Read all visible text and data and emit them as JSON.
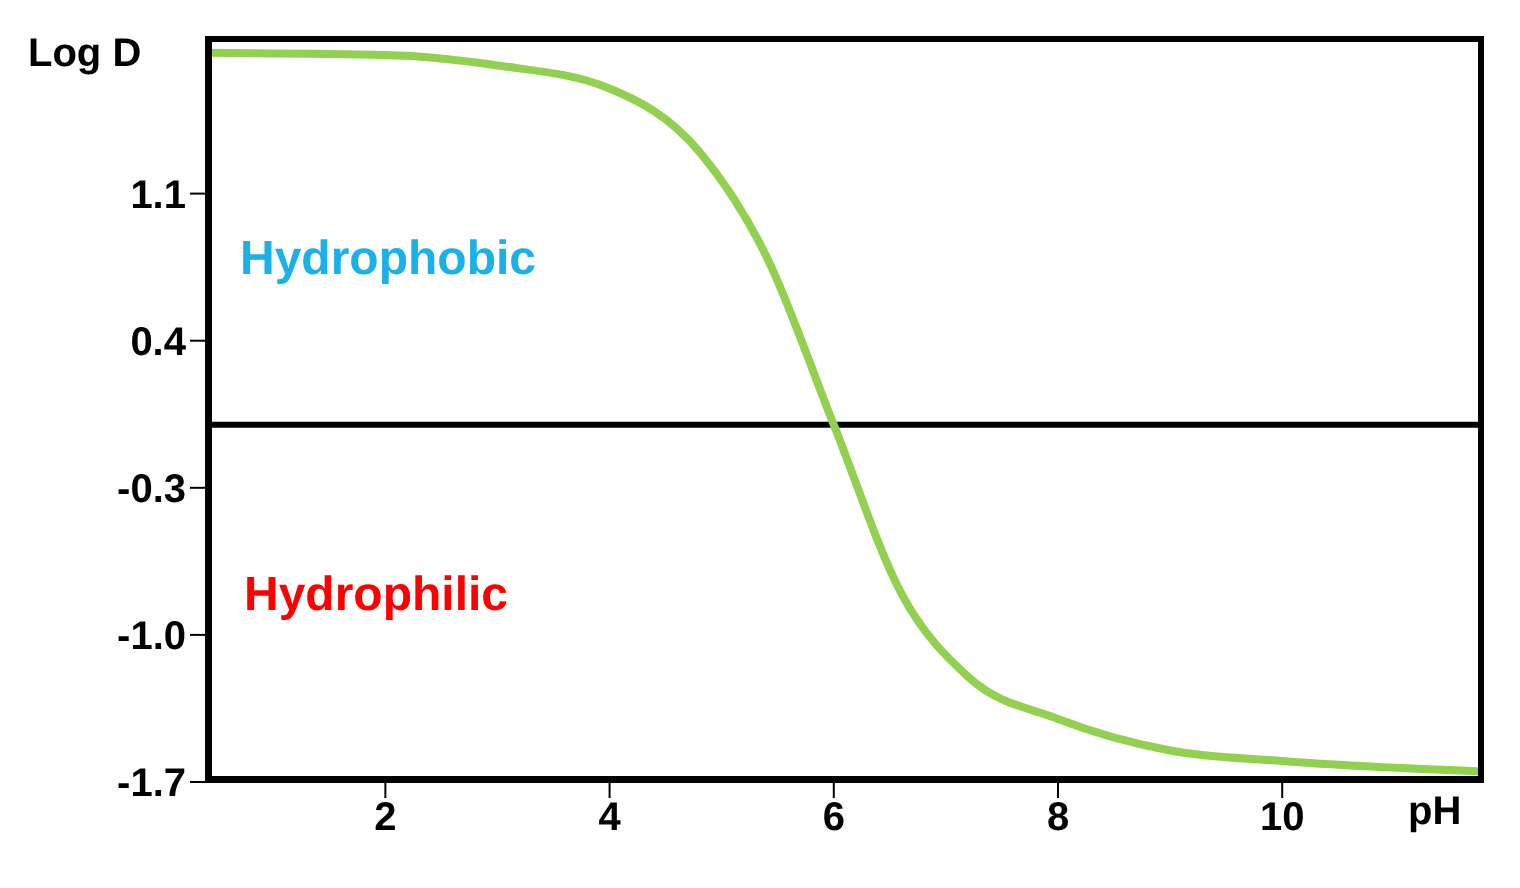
{
  "chart_data": {
    "type": "line",
    "xlabel": "pH",
    "ylabel": "Log D",
    "x": [
      0.4,
      2,
      3,
      4,
      4.8,
      5.4,
      6,
      6.6,
      7.2,
      8,
      9,
      10,
      11.8
    ],
    "series": [
      {
        "color": "#92d050",
        "values": [
          1.77,
          1.76,
          1.71,
          1.6,
          1.3,
          0.8,
          0,
          -0.8,
          -1.2,
          -1.4,
          -1.55,
          -1.6,
          -1.65
        ]
      }
    ],
    "xlim": [
      0.4,
      11.8
    ],
    "xticks": [
      2,
      4,
      6,
      8,
      10
    ],
    "ylim": [
      -1.7,
      1.85
    ],
    "yticks": [
      1.1,
      0.4,
      -0.3,
      {
        "value": -1,
        "label": "-1.0"
      },
      -1.7
    ],
    "ref_lines": [
      {
        "axis": "y",
        "value": 0,
        "color": "#000000"
      }
    ],
    "annotations": [
      "Hydrophobic",
      "Hydrophilic"
    ],
    "grid": false,
    "legend": false,
    "marker": "none",
    "line_style": "solid"
  }
}
